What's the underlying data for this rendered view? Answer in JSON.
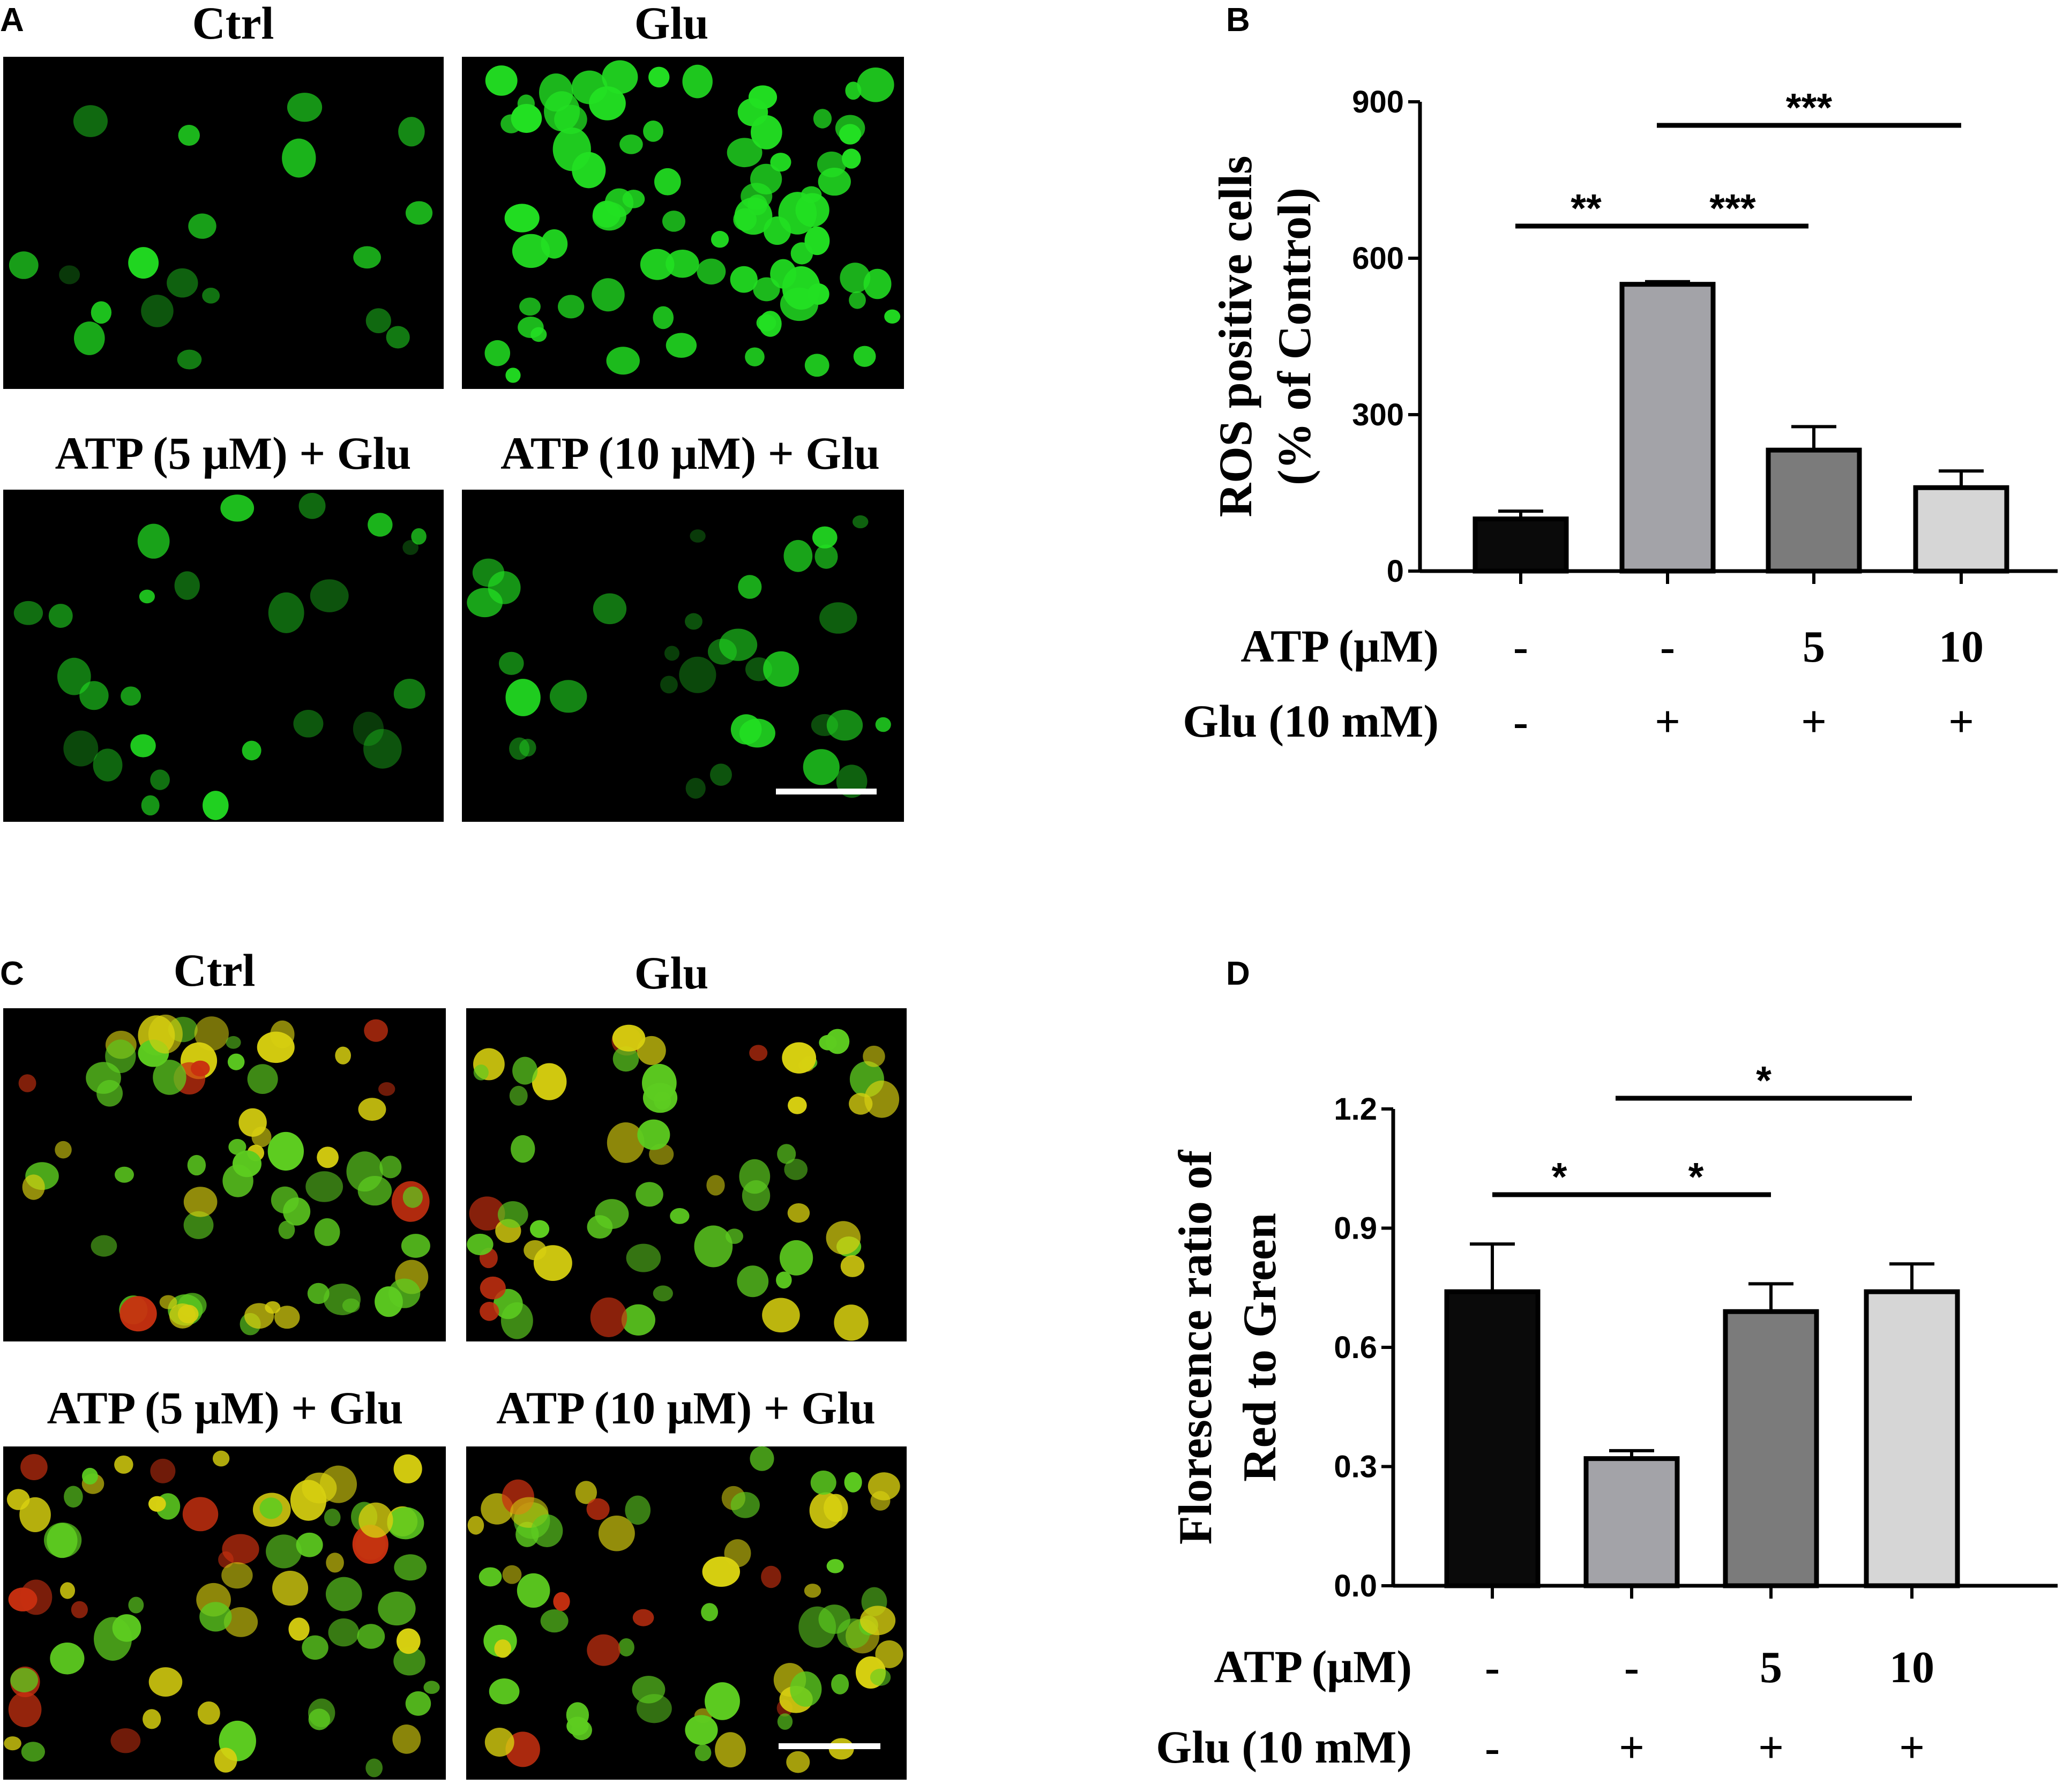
{
  "panels": {
    "A": {
      "letter": "A",
      "images": [
        {
          "title": "Ctrl",
          "stain": "ros",
          "density": 0.15
        },
        {
          "title": "Glu",
          "stain": "ros",
          "density": 1.0
        },
        {
          "title": "ATP (5 μM) + Glu",
          "stain": "ros",
          "density": 0.25
        },
        {
          "title": "ATP (10 μM) + Glu",
          "stain": "ros",
          "density": 0.35
        }
      ]
    },
    "C": {
      "letter": "C",
      "images": [
        {
          "title": "Ctrl",
          "stain": "jc1",
          "density": 0.8
        },
        {
          "title": "Glu",
          "stain": "jc1",
          "density": 0.7
        },
        {
          "title": "ATP (5 μM) + Glu",
          "stain": "jc1",
          "density": 0.9
        },
        {
          "title": "ATP (10 μM) + Glu",
          "stain": "jc1",
          "density": 0.8
        }
      ]
    },
    "B": {
      "letter": "B"
    },
    "D": {
      "letter": "D"
    }
  },
  "colors": {
    "bar_fills": [
      "#0a0a0a",
      "#a3a3a8",
      "#7b7b7b",
      "#d6d6d6"
    ],
    "ros_green": "#22e022",
    "jc1_green": "#5dcc20",
    "jc1_yellow": "#d8d010",
    "jc1_red": "#c83010"
  },
  "chart_data": [
    {
      "panel": "B",
      "type": "bar",
      "ylabel": [
        "ROS positive cells",
        "(% of Control)"
      ],
      "ylim": [
        0,
        900
      ],
      "yticks": [
        "0",
        "300",
        "600",
        "900"
      ],
      "values": [
        100,
        550,
        232,
        160
      ],
      "errors": [
        15,
        5,
        45,
        32
      ],
      "conditions": [
        {
          "label": "ATP (μM)",
          "values": [
            "-",
            "-",
            "5",
            "10"
          ]
        },
        {
          "label": "Glu (10 mM)",
          "values": [
            "-",
            "+",
            "+",
            "+"
          ]
        }
      ],
      "significance": [
        {
          "from": 0,
          "to": 1,
          "label": "**"
        },
        {
          "from": 1,
          "to": 2,
          "label": "***"
        },
        {
          "from": 1,
          "to": 3,
          "label": "***"
        }
      ]
    },
    {
      "panel": "D",
      "type": "bar",
      "ylabel": [
        "Florescence ratio of",
        "Red to Green"
      ],
      "ylim": [
        0,
        1.2
      ],
      "yticks": [
        "0.0",
        "0.3",
        "0.6",
        "0.9",
        "1.2"
      ],
      "values": [
        0.74,
        0.32,
        0.69,
        0.74
      ],
      "errors": [
        0.12,
        0.02,
        0.07,
        0.07
      ],
      "conditions": [
        {
          "label": "ATP (μM)",
          "values": [
            "-",
            "-",
            "5",
            "10"
          ]
        },
        {
          "label": "Glu (10 mM)",
          "values": [
            "-",
            "+",
            "+",
            "+"
          ]
        }
      ],
      "significance": [
        {
          "from": 0,
          "to": 1,
          "label": "*"
        },
        {
          "from": 1,
          "to": 2,
          "label": "*"
        },
        {
          "from": 1,
          "to": 3,
          "label": "*"
        }
      ]
    }
  ]
}
